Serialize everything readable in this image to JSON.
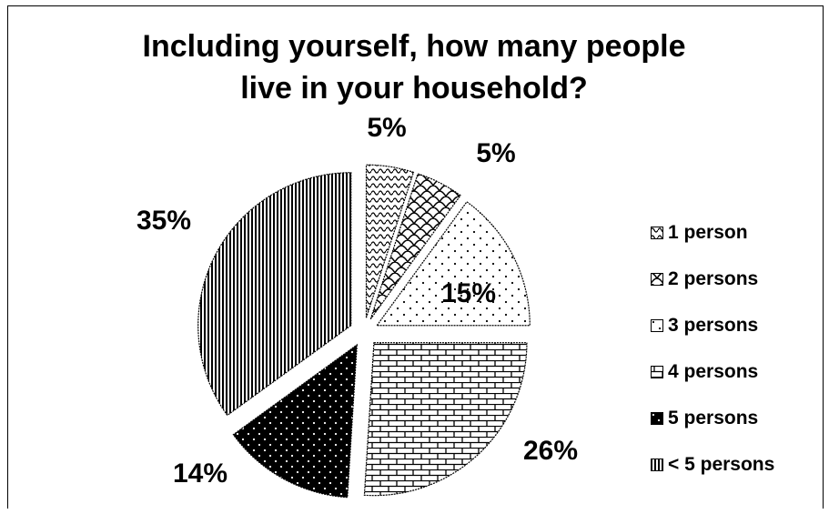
{
  "chart_data": {
    "type": "pie",
    "title": "Including yourself, how many people live in your household?",
    "title_lines": [
      "Including yourself, how many people",
      "live in your household?"
    ],
    "legend_placement": "right",
    "categories": [
      "1 person",
      "2 persons",
      "3 persons",
      "4 persons",
      "5 persons",
      "< 5 persons"
    ],
    "values": [
      5,
      5,
      15,
      26,
      14,
      35
    ],
    "labels": [
      "5%",
      "5%",
      "15%",
      "26%",
      "14%",
      "35%"
    ],
    "patterns": [
      "wave",
      "scales",
      "dots",
      "brick",
      "dark-dots",
      "vertical-lines"
    ]
  }
}
